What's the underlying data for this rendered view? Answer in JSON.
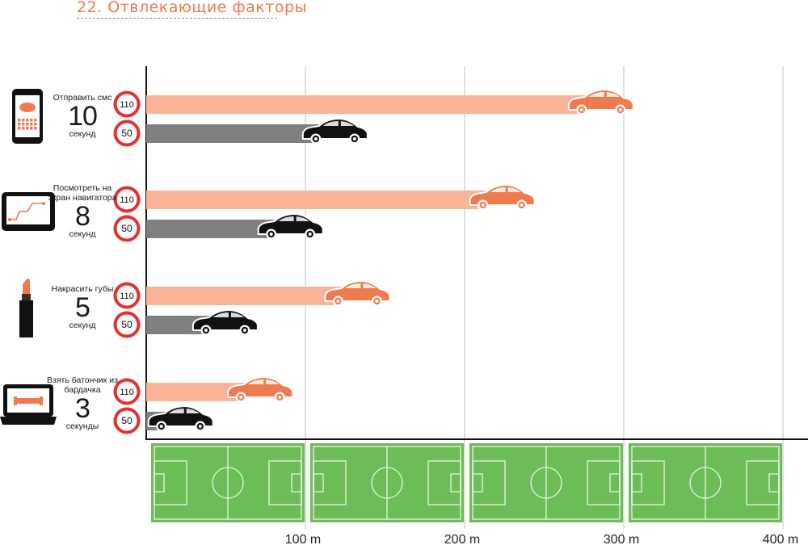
{
  "title": "22. Отвлекающие факторы",
  "colors": {
    "accent": "#f07a4f",
    "bar110": "#fbb497",
    "bar50": "#808080",
    "car110": "#f07a4f",
    "car50": "#111111",
    "sign_ring": "#e2312f",
    "field": "#6cbc57"
  },
  "chart_data": {
    "type": "bar",
    "orientation": "horizontal",
    "x_unit": "m",
    "xlim": [
      0,
      400
    ],
    "x_ticks": [
      {
        "value": 100,
        "label": "100 m"
      },
      {
        "value": 200,
        "label": "200 m"
      },
      {
        "value": 300,
        "label": "300 m"
      },
      {
        "value": 400,
        "label": "400 m"
      }
    ],
    "grid": true,
    "categories": [
      {
        "action": "Отправить смс",
        "icon": "smartphone-sms-icon",
        "seconds": "10",
        "unit": "секунд"
      },
      {
        "action": "Посмотреть на экран навигатора",
        "icon": "navigator-icon",
        "seconds": "8",
        "unit": "секунд"
      },
      {
        "action": "Накрасить губы",
        "icon": "lipstick-icon",
        "seconds": "5",
        "unit": "секунд"
      },
      {
        "action": "Взять батончик из бардачка",
        "icon": "glovebox-bar-icon",
        "seconds": "3",
        "unit": "секунды"
      }
    ],
    "series": [
      {
        "speed_sign": "110",
        "values": [
          306,
          244,
          153,
          92
        ]
      },
      {
        "speed_sign": "50",
        "values": [
          139,
          111,
          70,
          42
        ]
      }
    ]
  }
}
